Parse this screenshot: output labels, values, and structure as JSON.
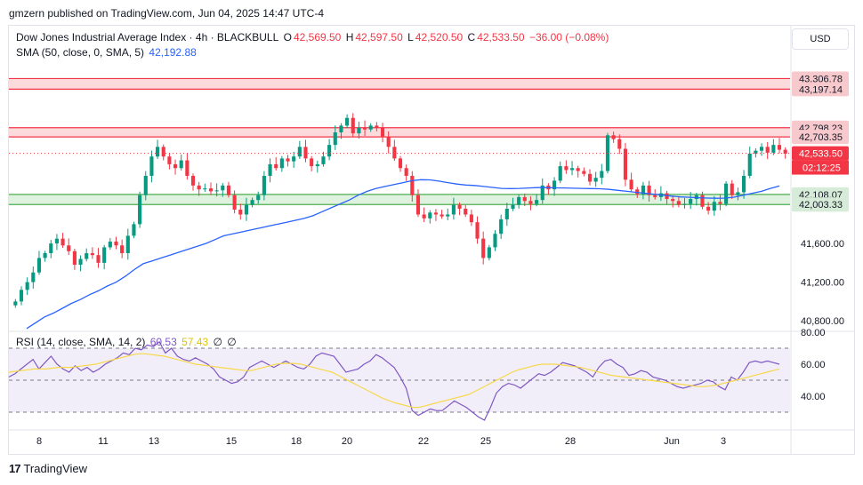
{
  "publisher_line": "gmzern published on TradingView.com, Jun 04, 2025 14:47 UTC-4",
  "legend": {
    "symbol": "Dow Jones Industrial Average Index · 4h · BLACKBULL",
    "o_label": "O",
    "o_value": "42,569.50",
    "h_label": "H",
    "h_value": "42,597.50",
    "l_label": "L",
    "l_value": "42,520.50",
    "c_label": "C",
    "c_value": "42,533.50",
    "change": "−36.00 (−0.08%)",
    "sma_label": "SMA (50, close, 0, SMA, 5)",
    "sma_value": "42,192.88",
    "rsi_label": "RSI (14, close, SMA, 14, 2)",
    "rsi_value": "60.53",
    "rsi_ma_value": "57.43",
    "rsi_extra1": "∅",
    "rsi_extra2": "∅"
  },
  "currency": "USD",
  "footer_brand": "TradingView",
  "colors": {
    "up": "#089981",
    "down": "#f23645",
    "sma": "#2962ff",
    "rsi": "#7e57c2",
    "rsi_ma": "#f7d84a",
    "resistance": "#f23645",
    "support": "#4caf50"
  },
  "chart_data": {
    "type": "candlestick",
    "price_axis": {
      "ticks": [
        41200,
        41600,
        40800
      ],
      "tick_labels": [
        "41,200.00",
        "41,600.00",
        "40,800.00"
      ],
      "range": [
        40700,
        43550
      ]
    },
    "x_tick_labels": [
      "8",
      "11",
      "13",
      "15",
      "18",
      "20",
      "22",
      "25",
      "28",
      "Jun",
      "3"
    ],
    "price_labels": [
      {
        "value": 43306.78,
        "label": "43,306.78",
        "kind": "resistance"
      },
      {
        "value": 43197.14,
        "label": "43,197.14",
        "kind": "resistance"
      },
      {
        "value": 42798.23,
        "label": "42,798.23",
        "kind": "resistance"
      },
      {
        "value": 42703.35,
        "label": "42,703.35",
        "kind": "resistance"
      },
      {
        "value": 42533.5,
        "label": "42,533.50",
        "kind": "last"
      },
      {
        "value": 42108.07,
        "label": "42,108.07",
        "kind": "support"
      },
      {
        "value": 42003.33,
        "label": "42,003.33",
        "kind": "support"
      }
    ],
    "countdown": "02:12:25",
    "zones": [
      {
        "kind": "resistance",
        "from": 43197.14,
        "to": 43306.78
      },
      {
        "kind": "resistance",
        "from": 42703.35,
        "to": 42798.23
      },
      {
        "kind": "support",
        "from": 42003.33,
        "to": 42108.07
      }
    ],
    "close_series": [
      41000,
      41120,
      41200,
      41300,
      41450,
      41500,
      41600,
      41650,
      41580,
      41520,
      41380,
      41440,
      41500,
      41480,
      41400,
      41560,
      41620,
      41580,
      41500,
      41680,
      41800,
      42100,
      42300,
      42500,
      42600,
      42500,
      42420,
      42380,
      42460,
      42300,
      42200,
      42160,
      42170,
      42140,
      42150,
      42200,
      42100,
      41950,
      41900,
      42000,
      42050,
      42100,
      42300,
      42420,
      42380,
      42480,
      42450,
      42500,
      42600,
      42480,
      42400,
      42420,
      42500,
      42620,
      42750,
      42820,
      42900,
      42740,
      42800,
      42780,
      42820,
      42800,
      42700,
      42600,
      42480,
      42380,
      42300,
      42100,
      41900,
      41860,
      41920,
      41900,
      41880,
      41900,
      42000,
      41960,
      41900,
      41820,
      41650,
      41450,
      41560,
      41700,
      41850,
      41960,
      42000,
      42080,
      42040,
      42010,
      42050,
      42200,
      42160,
      42250,
      42400,
      42360,
      42380,
      42350,
      42320,
      42240,
      42280,
      42350,
      42720,
      42680,
      42580,
      42260,
      42160,
      42110,
      42200,
      42100,
      42080,
      42120,
      42060,
      42040,
      42000,
      42010,
      42060,
      42100,
      41980,
      41940,
      42030,
      42010,
      42220,
      42100,
      42130,
      42300,
      42530,
      42560,
      42600,
      42540,
      42620,
      42570,
      42530
    ],
    "sma_series": [
      40720,
      40780,
      40840,
      40880,
      40930,
      40980,
      41020,
      41070,
      41110,
      41160,
      41200,
      41260,
      41330,
      41390,
      41420,
      41450,
      41480,
      41510,
      41540,
      41570,
      41600,
      41640,
      41680,
      41700,
      41720,
      41740,
      41760,
      41780,
      41800,
      41820,
      41840,
      41860,
      41890,
      41930,
      41970,
      42010,
      42050,
      42100,
      42140,
      42170,
      42190,
      42210,
      42230,
      42250,
      42260,
      42258,
      42245,
      42230,
      42215,
      42205,
      42200,
      42190,
      42180,
      42170,
      42168,
      42170,
      42175,
      42178,
      42178,
      42176,
      42175,
      42172,
      42170,
      42168,
      42166,
      42160,
      42150,
      42140,
      42130,
      42120,
      42110,
      42100,
      42090,
      42082,
      42078,
      42073,
      42070,
      42068,
      42070,
      42080,
      42100,
      42120,
      42140,
      42170,
      42195
    ],
    "rsi_axis": {
      "ticks": [
        80,
        60,
        40
      ],
      "tick_labels": [
        "80.00",
        "60.00",
        "40.00"
      ],
      "range": [
        20,
        80
      ],
      "bands": [
        70,
        50,
        30
      ]
    },
    "rsi_series": [
      52,
      54,
      57,
      60,
      63,
      57,
      61,
      65,
      60,
      57,
      55,
      59,
      56,
      58,
      55,
      57,
      60,
      62,
      64,
      67,
      66,
      70,
      69,
      72,
      71,
      74,
      67,
      70,
      65,
      63,
      62,
      64,
      62,
      60,
      57,
      52,
      50,
      48,
      49,
      52,
      58,
      60,
      62,
      60,
      58,
      60,
      62,
      60,
      58,
      57,
      60,
      65,
      67,
      66,
      65,
      60,
      55,
      56,
      57,
      60,
      62,
      66,
      64,
      61,
      58,
      52,
      45,
      31,
      28,
      30,
      32,
      31,
      31,
      34,
      37,
      35,
      33,
      30,
      27,
      25,
      33,
      42,
      46,
      48,
      47,
      45,
      48,
      51,
      54,
      53,
      55,
      58,
      61,
      60,
      59,
      57,
      55,
      52,
      58,
      62,
      63,
      60,
      58,
      53,
      54,
      56,
      55,
      52,
      51,
      50,
      48,
      46,
      45,
      46,
      47,
      48,
      50,
      49,
      46,
      44,
      52,
      50,
      55,
      61,
      62,
      61,
      62,
      61,
      60
    ],
    "rsi_ma_series": [
      55,
      55.5,
      56,
      56.5,
      57,
      57,
      57,
      57.5,
      58,
      58,
      58,
      58.5,
      59,
      59.5,
      60,
      61,
      62,
      63,
      64,
      65,
      66,
      66.5,
      66.5,
      66,
      65.5,
      65,
      64,
      63,
      62,
      61,
      60,
      59.5,
      59,
      58.5,
      58,
      57.5,
      57,
      56.5,
      56,
      56,
      57,
      58,
      59,
      60,
      60.5,
      60.5,
      60.5,
      60,
      59,
      58,
      57,
      56,
      55,
      53,
      51,
      49,
      47,
      45,
      43,
      41,
      39,
      37.5,
      36,
      35,
      34,
      33,
      33,
      34,
      35,
      36,
      37,
      38,
      39,
      40,
      41,
      43,
      45,
      47,
      49,
      51,
      53,
      55,
      56.5,
      57.5,
      58.5,
      59.5,
      60,
      60,
      60,
      59.5,
      59,
      58.5,
      58,
      57,
      56,
      55,
      54,
      53,
      52.5,
      52,
      51.5,
      51,
      50.5,
      50,
      49.5,
      49,
      48.5,
      48,
      47.5,
      47,
      46.5,
      46,
      46,
      46.5,
      47,
      48,
      49,
      50,
      51,
      52,
      53,
      54,
      55,
      56,
      57
    ]
  }
}
